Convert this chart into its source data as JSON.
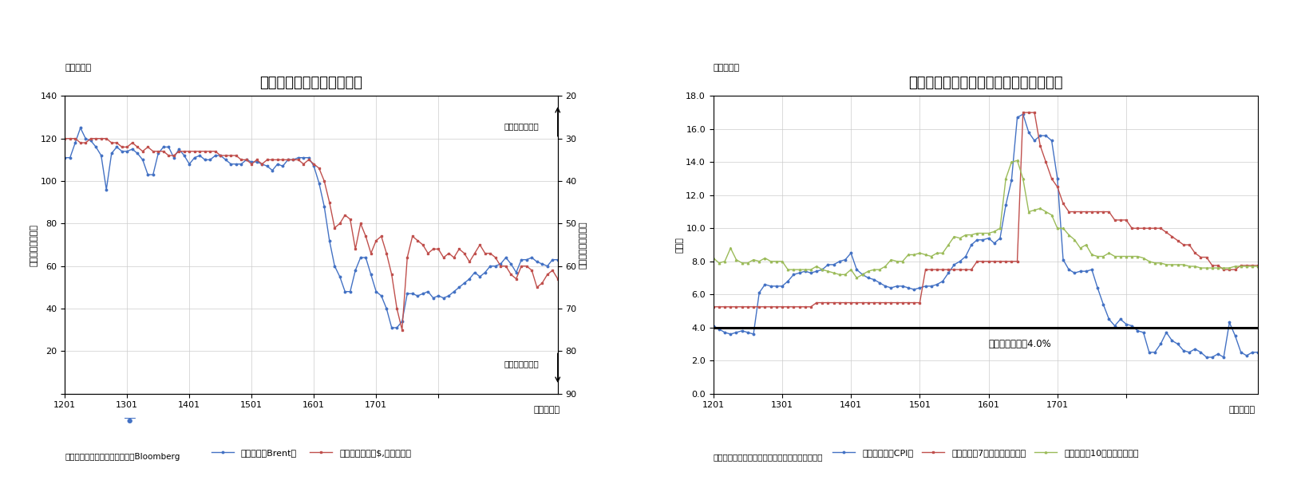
{
  "chart1": {
    "title": "原油価格と為替相場の推移",
    "subtitle": "（図表２）",
    "ylabel_left": "（ドル／バレル）",
    "ylabel_right": "（ルーブル／ドル）",
    "annotation_high": "（ルーブル高）",
    "annotation_low": "（ルーブル安）",
    "xlabel": "（年・月）",
    "ylim_left": [
      0,
      140
    ],
    "ylim_right": [
      20,
      90
    ],
    "yticks_left": [
      0,
      20,
      40,
      60,
      80,
      100,
      120,
      140
    ],
    "yticks_right": [
      20,
      30,
      40,
      50,
      60,
      70,
      80,
      90
    ],
    "source": "（資料）ロシア連邦中央銀行、Bloomberg",
    "legend1": "原油価格（Brent）",
    "legend2": "為替相場（対米$,右逆目盛）",
    "color1": "#4472c4",
    "color2": "#c0504d",
    "oil_y": [
      111,
      111,
      118,
      125,
      120,
      119,
      116,
      112,
      96,
      113,
      116,
      114,
      114,
      115,
      113,
      110,
      103,
      103,
      113,
      116,
      116,
      111,
      115,
      112,
      108,
      111,
      112,
      110,
      110,
      112,
      112,
      110,
      108,
      108,
      108,
      110,
      109,
      109,
      108,
      107,
      105,
      108,
      107,
      110,
      110,
      111,
      111,
      111,
      107,
      99,
      88,
      72,
      60,
      55,
      48,
      48,
      58,
      64,
      64,
      56,
      48,
      46,
      40,
      31,
      31,
      34,
      47,
      47,
      46,
      47,
      48,
      45,
      46,
      45,
      46,
      48,
      50,
      52,
      54,
      57,
      55,
      57,
      60,
      60,
      61,
      64,
      61,
      57,
      63,
      63,
      64,
      62,
      61,
      60,
      63,
      63
    ],
    "rub_y": [
      30,
      30,
      30,
      31,
      31,
      30,
      30,
      30,
      30,
      31,
      31,
      32,
      32,
      31,
      32,
      33,
      32,
      33,
      33,
      33,
      34,
      34,
      33,
      33,
      33,
      33,
      33,
      33,
      33,
      33,
      34,
      34,
      34,
      34,
      35,
      35,
      36,
      35,
      36,
      35,
      35,
      35,
      35,
      35,
      35,
      35,
      36,
      35,
      36,
      37,
      40,
      45,
      51,
      50,
      48,
      49,
      56,
      50,
      53,
      57,
      54,
      53,
      57,
      62,
      70,
      75,
      58,
      53,
      54,
      55,
      57,
      56,
      56,
      58,
      57,
      58,
      56,
      57,
      59,
      57,
      55,
      57,
      57,
      58,
      60,
      60,
      62,
      63,
      60,
      60,
      61,
      65,
      64,
      62,
      61,
      63
    ]
  },
  "chart2": {
    "title": "インフレ率と政策金利・長期金利の推移",
    "subtitle": "（図表３）",
    "ylabel": "（％）",
    "xlabel": "（年・月）",
    "ylim": [
      0.0,
      18.0
    ],
    "yticks": [
      0.0,
      2.0,
      4.0,
      6.0,
      8.0,
      10.0,
      12.0,
      14.0,
      16.0,
      18.0
    ],
    "source": "（資料）ロシア連邦統計局、ロシア連邦中央銀行",
    "legend1": "インフレ率（CPI）",
    "legend2": "政策金利（7日物レポレート）",
    "legend3": "長期金利（10年国債利回り）",
    "color1": "#4472c4",
    "color2": "#c0504d",
    "color3": "#9bbb59",
    "inflation_target": 4.0,
    "inflation_target_label": "インフレ目標：4.0%",
    "cpi_y": [
      4.1,
      3.9,
      3.7,
      3.6,
      3.7,
      3.8,
      3.7,
      3.6,
      6.1,
      6.6,
      6.5,
      6.5,
      6.5,
      6.8,
      7.2,
      7.3,
      7.4,
      7.3,
      7.4,
      7.5,
      7.8,
      7.8,
      8.0,
      8.1,
      8.5,
      7.5,
      7.2,
      7.0,
      6.9,
      6.7,
      6.5,
      6.4,
      6.5,
      6.5,
      6.4,
      6.3,
      6.4,
      6.5,
      6.5,
      6.6,
      6.8,
      7.3,
      7.8,
      8.0,
      8.3,
      9.0,
      9.3,
      9.3,
      9.4,
      9.1,
      9.4,
      11.4,
      12.9,
      16.7,
      16.9,
      15.8,
      15.3,
      15.6,
      15.6,
      15.3,
      13.0,
      8.1,
      7.5,
      7.3,
      7.4,
      7.4,
      7.5,
      6.4,
      5.4,
      4.5,
      4.1,
      4.5,
      4.2,
      4.1,
      3.8,
      3.7,
      2.5,
      2.5,
      3.0,
      3.7,
      3.2,
      3.0,
      2.6,
      2.5,
      2.7,
      2.5,
      2.2,
      2.2,
      2.4,
      2.2,
      4.3,
      3.5,
      2.5,
      2.3,
      2.5,
      2.5
    ],
    "policy_y": [
      5.25,
      5.25,
      5.25,
      5.25,
      5.25,
      5.25,
      5.25,
      5.25,
      5.25,
      5.25,
      5.25,
      5.25,
      5.25,
      5.25,
      5.25,
      5.25,
      5.25,
      5.25,
      5.5,
      5.5,
      5.5,
      5.5,
      5.5,
      5.5,
      5.5,
      5.5,
      5.5,
      5.5,
      5.5,
      5.5,
      5.5,
      5.5,
      5.5,
      5.5,
      5.5,
      5.5,
      5.5,
      7.5,
      7.5,
      7.5,
      7.5,
      7.5,
      7.5,
      7.5,
      7.5,
      7.5,
      8.0,
      8.0,
      8.0,
      8.0,
      8.0,
      8.0,
      8.0,
      8.0,
      17.0,
      17.0,
      17.0,
      15.0,
      14.0,
      13.0,
      12.5,
      11.5,
      11.0,
      11.0,
      11.0,
      11.0,
      11.0,
      11.0,
      11.0,
      11.0,
      10.5,
      10.5,
      10.5,
      10.0,
      10.0,
      10.0,
      10.0,
      10.0,
      10.0,
      9.75,
      9.5,
      9.25,
      9.0,
      9.0,
      8.5,
      8.25,
      8.25,
      7.75,
      7.75,
      7.5,
      7.5,
      7.5,
      7.75,
      7.75,
      7.75,
      7.75
    ],
    "longterm_y": [
      8.2,
      7.9,
      8.0,
      8.8,
      8.1,
      7.9,
      7.9,
      8.1,
      8.0,
      8.2,
      8.0,
      8.0,
      8.0,
      7.5,
      7.5,
      7.5,
      7.5,
      7.5,
      7.7,
      7.5,
      7.4,
      7.3,
      7.2,
      7.2,
      7.5,
      7.0,
      7.2,
      7.4,
      7.5,
      7.5,
      7.7,
      8.1,
      8.0,
      8.0,
      8.4,
      8.4,
      8.5,
      8.4,
      8.3,
      8.5,
      8.5,
      9.0,
      9.5,
      9.4,
      9.6,
      9.6,
      9.7,
      9.7,
      9.7,
      9.8,
      10.0,
      13.0,
      14.0,
      14.1,
      13.0,
      11.0,
      11.1,
      11.2,
      11.0,
      10.8,
      10.0,
      10.0,
      9.6,
      9.3,
      8.8,
      9.0,
      8.4,
      8.3,
      8.3,
      8.5,
      8.3,
      8.3,
      8.3,
      8.3,
      8.3,
      8.2,
      8.0,
      7.9,
      7.9,
      7.8,
      7.8,
      7.8,
      7.8,
      7.7,
      7.7,
      7.6,
      7.6,
      7.6,
      7.6,
      7.6,
      7.6,
      7.7,
      7.7,
      7.7,
      7.7,
      7.7
    ]
  }
}
